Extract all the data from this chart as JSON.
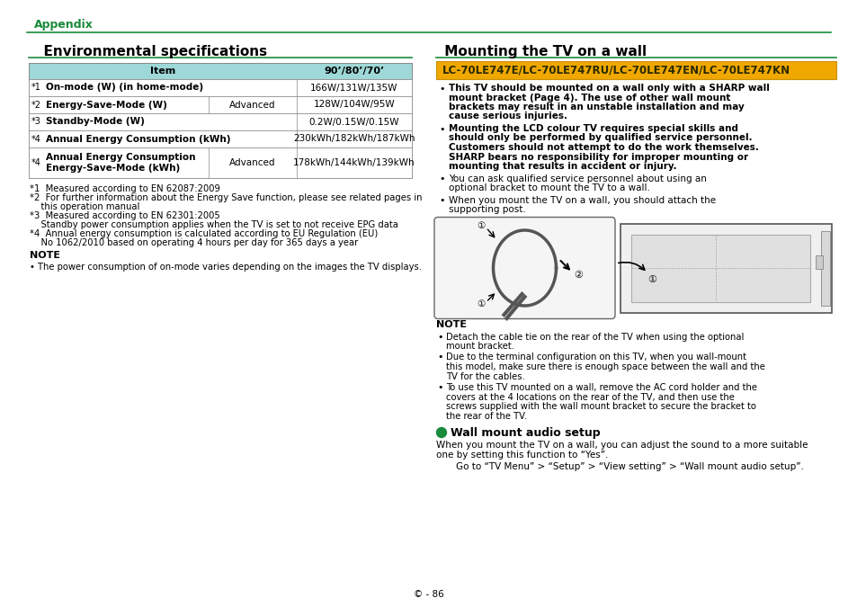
{
  "bg_color": "#ffffff",
  "green_color": "#1a8a3c",
  "teal_header_color": "#9fd8d8",
  "gold_banner_color": "#f0a800",
  "gold_border_color": "#c8900a",
  "page_number": "© - 86",
  "appendix_label": "Appendix",
  "left_title": "  Environmental specifications",
  "right_title": " Mounting the TV on a wall",
  "table_header_item": "Item",
  "table_header_size": "90’/80’/70’",
  "table_rows": [
    {
      "star": "*1",
      "label": "On-mode (W) (in home-mode)",
      "sub": "",
      "value": "166W/131W/135W"
    },
    {
      "star": "*2",
      "label": "Energy-Save-Mode (W)",
      "sub": "Advanced",
      "value": "128W/104W/95W"
    },
    {
      "star": "*3",
      "label": "Standby-Mode (W)",
      "sub": "",
      "value": "0.2W/0.15W/0.15W"
    },
    {
      "star": "*4",
      "label": "Annual Energy Consumption (kWh)",
      "sub": "",
      "value": "230kWh/182kWh/187kWh"
    },
    {
      "star": "*4",
      "label": "Annual Energy Consumption",
      "label2": "Energy-Save-Mode (kWh)",
      "sub": "Advanced",
      "value": "178kWh/144kWh/139kWh"
    }
  ],
  "footnotes": [
    [
      "*1",
      "  Measured according to EN 62087:2009"
    ],
    [
      "*2",
      "  For further information about the Energy Save function, please see related pages in"
    ],
    [
      "",
      "    this operation manual"
    ],
    [
      "*3",
      "  Measured according to EN 62301:2005"
    ],
    [
      "",
      "    Standby power consumption applies when the TV is set to not receive EPG data"
    ],
    [
      "*4",
      "  Annual energy consumption is calculated according to EU Regulation (EU)"
    ],
    [
      "",
      "    No 1062/2010 based on operating 4 hours per day for 365 days a year"
    ]
  ],
  "note_left_title": "NOTE",
  "note_left_text": "• The power consumption of on-mode varies depending on the images the TV displays.",
  "lc_banner_text": "LC-70LE747E/LC-70LE747RU/LC-70LE747EN/LC-70LE747KN",
  "right_bullets_bold": [
    [
      "bold",
      "This TV should be mounted on a wall only with a SHARP wall mount bracket (Page 4). The use of other wall mount brackets may result in an unstable installation and may cause serious injuries."
    ],
    [
      "bold",
      "Mounting the LCD colour TV requires special skills and should only be performed by qualified service personnel. Customers should not attempt to do the work themselves. SHARP bears no responsibility for improper mounting or mounting that results in accident or injury."
    ]
  ],
  "right_bullets_normal": [
    [
      "normal",
      "You can ask qualified service personnel about using an optional bracket to mount the TV to a wall."
    ],
    [
      "normal",
      "When you mount the TV on a wall, you should attach the supporting post."
    ]
  ],
  "note_right_title": "NOTE",
  "note_right_bullets": [
    "Detach the cable tie on the rear of the TV when using the optional mount bracket.",
    "Due to the terminal configuration on this TV, when you wall-mount this model, make sure there is enough space between the wall and the TV for the cables.",
    "To use this TV mounted on a wall, remove the AC cord holder and the covers at the 4 locations on the rear of the TV, and then use the screws supplied with the wall mount bracket to secure the bracket to the rear of the TV."
  ],
  "wall_mount_title": "Wall mount audio setup",
  "wall_mount_text1": "When you mount the TV on a wall, you can adjust the sound to a more suitable",
  "wall_mount_text2": "one by setting this function to “Yes”.",
  "wall_mount_goto": "Go to “TV Menu” > “Setup” > “View setting” > “Wall mount audio setup”."
}
